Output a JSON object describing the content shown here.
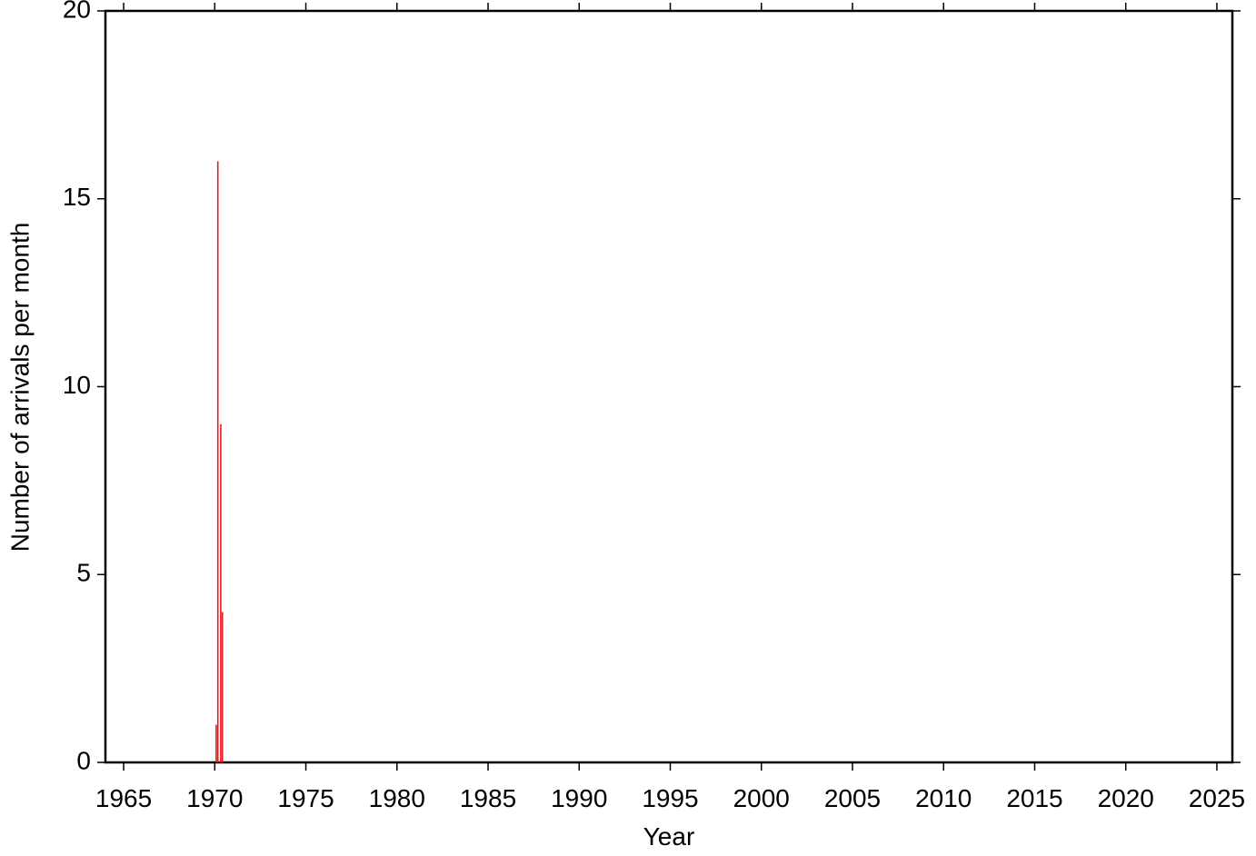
{
  "chart_data": {
    "type": "bar",
    "xlabel": "Year",
    "ylabel": "Number of arrivals per month",
    "x": [
      1970.08,
      1970.17,
      1970.33,
      1970.42
    ],
    "values": [
      1,
      16,
      9,
      4
    ],
    "color": "#e8191e",
    "xlim": [
      1964,
      2025.85
    ],
    "xticks": [
      1965,
      1970,
      1975,
      1980,
      1985,
      1990,
      1995,
      2000,
      2005,
      2010,
      2015,
      2020,
      2025
    ],
    "ylim": [
      0,
      20
    ],
    "yticks": [
      0,
      5,
      10,
      15,
      20
    ]
  }
}
